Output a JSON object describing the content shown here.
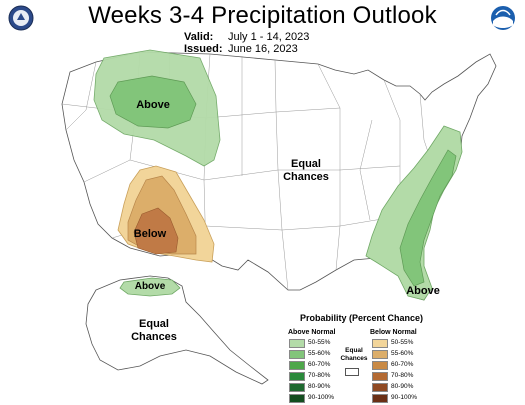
{
  "header": {
    "title": "Weeks 3-4 Precipitation Outlook",
    "valid_label": "Valid:",
    "valid_value": "July 1 - 14, 2023",
    "issued_label": "Issued:",
    "issued_value": "June 16, 2023"
  },
  "regions": {
    "north_rockies": "Above",
    "southwest": "Below",
    "southeast": "Above",
    "alaska_above": "Above",
    "conus_equal": "Equal Chances",
    "alaska_equal": "Equal Chances"
  },
  "legend": {
    "title": "Probability (Percent Chance)",
    "above_header": "Above Normal",
    "below_header": "Below Normal",
    "equal_label": "Equal Chances",
    "ranges": [
      "50-55%",
      "55-60%",
      "60-70%",
      "70-80%",
      "80-90%",
      "90-100%"
    ],
    "above_colors": [
      "#b3dba8",
      "#82c57a",
      "#4ea74a",
      "#2a8a3b",
      "#1f6a30",
      "#134d1f"
    ],
    "below_colors": [
      "#f2d59a",
      "#dcae6a",
      "#c98a45",
      "#b36a33",
      "#8f4a23",
      "#6a2f15"
    ]
  },
  "colors": {
    "above_light": "#b3dba8",
    "above_medium": "#82c57a",
    "below_light": "#f2d59a",
    "below_medium": "#dcae6a",
    "below_dark": "#c07a46"
  }
}
